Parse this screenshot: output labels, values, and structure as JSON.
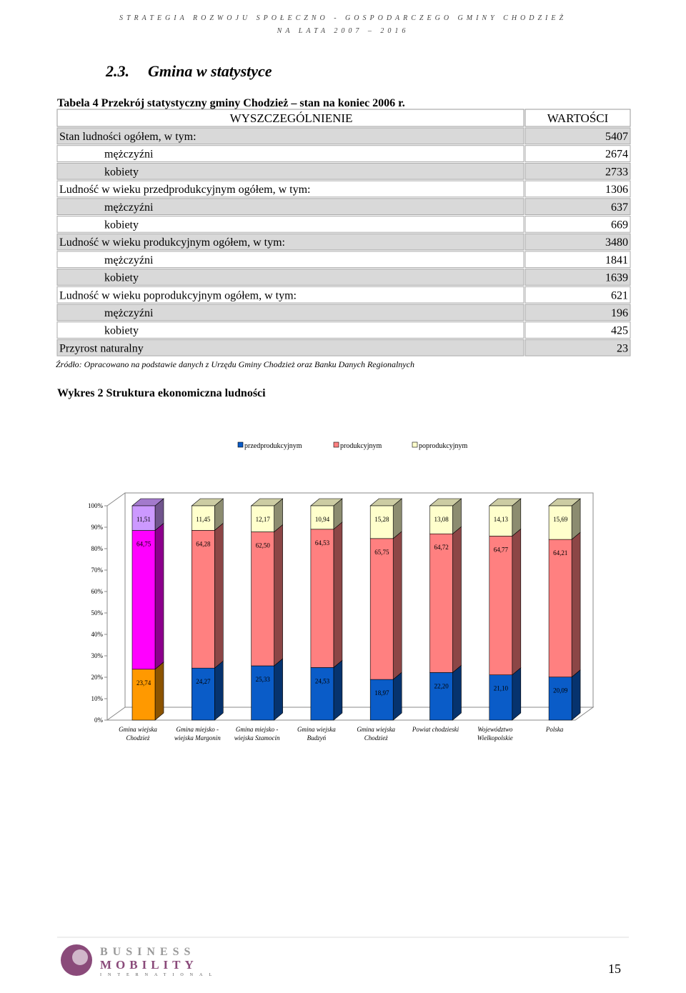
{
  "header": {
    "line1": "STRATEGIA ROZWOJU SPOŁECZNO - GOSPODARCZEGO GMINY CHODZIEŻ",
    "line2": "NA LATA 2007 – 2016"
  },
  "section": {
    "number": "2.3.",
    "title": "Gmina w statystyce"
  },
  "table": {
    "caption": "Tabela 4 Przekrój statystyczny gminy Chodzież – stan na koniec 2006 r.",
    "columns": [
      "WYSZCZEGÓLNIENIE",
      "WARTOŚCI"
    ],
    "groups": [
      {
        "label": "Stan ludności ogółem, w tym:",
        "value": 5407,
        "items": [
          {
            "label": "mężczyźni",
            "value": 2674
          },
          {
            "label": "kobiety",
            "value": 2733
          }
        ]
      },
      {
        "label": "Ludność w wieku przedprodukcyjnym ogółem, w tym:",
        "value": 1306,
        "items": [
          {
            "label": "mężczyźni",
            "value": 637
          },
          {
            "label": "kobiety",
            "value": 669
          }
        ]
      },
      {
        "label": "Ludność w wieku produkcyjnym ogółem, w tym:",
        "value": 3480,
        "items": [
          {
            "label": "mężczyźni",
            "value": 1841
          },
          {
            "label": "kobiety",
            "value": 1639
          }
        ]
      },
      {
        "label": "Ludność w wieku poprodukcyjnym ogółem, w tym:",
        "value": 621,
        "items": [
          {
            "label": "mężczyźni",
            "value": 196
          },
          {
            "label": "kobiety",
            "value": 425
          }
        ]
      },
      {
        "label": "Przyrost naturalny",
        "value": 23,
        "items": []
      }
    ],
    "source": "Źródło: Opracowano na podstawie danych z Urzędu Gminy Chodzież oraz Banku Danych Regionalnych"
  },
  "chart_caption": "Wykres 2 Struktura ekonomiczna ludności",
  "chart_data": {
    "type": "stacked_bar_3d",
    "categories": [
      [
        "Gmina wiejska",
        "Chodzież"
      ],
      [
        "Gmina miejsko -",
        "wiejska Margonin"
      ],
      [
        "Gmina miejsko -",
        "wiejska Szamocin"
      ],
      [
        "Gmina wiejska",
        "Budzyń"
      ],
      [
        "Gmina wiejska",
        "Chodzież"
      ],
      [
        "Powiat chodzieski"
      ],
      [
        "Województwo",
        "Wielkopolskie"
      ],
      [
        "Polska"
      ]
    ],
    "series": [
      {
        "name": "przedprodukcyjnym",
        "color": "#0a5cc8",
        "colors": [
          "#ff9900",
          "#0a5cc8",
          "#0a5cc8",
          "#0a5cc8",
          "#0a5cc8",
          "#0a5cc8",
          "#0a5cc8",
          "#0a5cc8"
        ],
        "values": [
          23.74,
          24.27,
          25.33,
          24.53,
          18.97,
          22.2,
          21.1,
          20.09
        ],
        "value_labels": [
          "23,74",
          "24,27",
          "25,33",
          "24,53",
          "18,97",
          "22,20",
          "21,10",
          "20,09"
        ]
      },
      {
        "name": "produkcyjnym",
        "color": "#ff8080",
        "colors": [
          "#ff00ff",
          "#ff8080",
          "#ff8080",
          "#ff8080",
          "#ff8080",
          "#ff8080",
          "#ff8080",
          "#ff8080"
        ],
        "values": [
          64.75,
          64.28,
          62.5,
          64.53,
          65.75,
          64.72,
          64.77,
          64.21
        ],
        "value_labels": [
          "64,75",
          "64,28",
          "62,50",
          "64,53",
          "65,75",
          "64,72",
          "64,77",
          "64,21"
        ]
      },
      {
        "name": "poprodukcyjnym",
        "color": "#ffffcc",
        "colors": [
          "#cc99ff",
          "#ffffcc",
          "#ffffcc",
          "#ffffcc",
          "#ffffcc",
          "#ffffcc",
          "#ffffcc",
          "#ffffcc"
        ],
        "values": [
          11.51,
          11.45,
          12.17,
          10.94,
          15.28,
          13.08,
          14.13,
          15.69
        ],
        "value_labels": [
          "11,51",
          "11,45",
          "12,17",
          "10,94",
          "15,28",
          "13,08",
          "14,13",
          "15,69"
        ]
      }
    ],
    "ylim": [
      0,
      100
    ],
    "yticks": [
      {
        "value": 0,
        "label": "0%"
      },
      {
        "value": 10,
        "label": "10%"
      },
      {
        "value": 20,
        "label": "20%"
      },
      {
        "value": 30,
        "label": "30%"
      },
      {
        "value": 40,
        "label": "40%"
      },
      {
        "value": 50,
        "label": "50%"
      },
      {
        "value": 60,
        "label": "60%"
      },
      {
        "value": 70,
        "label": "70%"
      },
      {
        "value": 80,
        "label": "80%"
      },
      {
        "value": 90,
        "label": "90%"
      },
      {
        "value": 100,
        "label": "100%"
      }
    ],
    "legend": "top"
  },
  "footer": {
    "logo": [
      "BUSINESS",
      "MOBILITY",
      "INTERNATIONAL"
    ],
    "page": "15"
  }
}
